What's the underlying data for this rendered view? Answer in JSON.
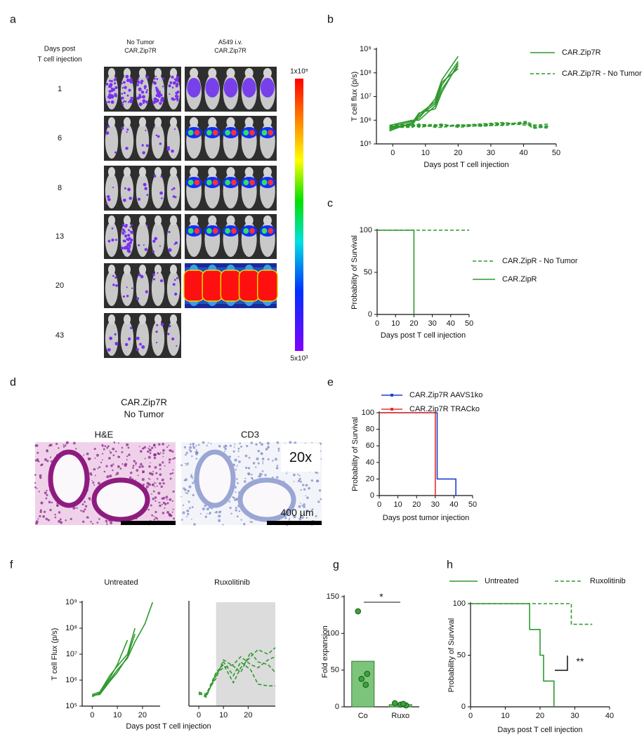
{
  "panel_labels": [
    "a",
    "b",
    "c",
    "d",
    "e",
    "f",
    "g",
    "h"
  ],
  "panel_a": {
    "row_header": [
      "Days post",
      "T cell injection"
    ],
    "column_headers": [
      [
        "No Tumor",
        "CAR.Zip7R"
      ],
      [
        "A549 i.v.",
        "CAR.Zip7R"
      ]
    ],
    "days": [
      "1",
      "6",
      "8",
      "13",
      "20",
      "43"
    ],
    "colorbar_labels": [
      "1x10⁵",
      "5x10³"
    ]
  },
  "panel_d": {
    "title": [
      "CAR.Zip7R",
      "No Tumor"
    ],
    "stains": [
      "H&E",
      "CD3"
    ],
    "magnification": "20x",
    "scale_bar": "400 µm"
  },
  "chart_data": [
    {
      "type": "line",
      "ylog": true,
      "xlim": [
        -5,
        50
      ],
      "xticks": [
        0,
        10,
        20,
        30,
        40,
        50
      ],
      "ylim": [
        100000,
        1000000000
      ],
      "yticks": [
        {
          "value": 100000,
          "label": "10⁵"
        },
        {
          "value": 1000000,
          "label": "10⁶"
        },
        {
          "value": 10000000,
          "label": "10⁷"
        },
        {
          "value": 100000000,
          "label": "10⁸"
        },
        {
          "value": 1000000000,
          "label": "10⁹"
        }
      ],
      "xlabel": "Days post T cell injection",
      "ylabel": "T cell flux (p/s)",
      "series": [
        {
          "name": "CAR.Zip7R",
          "color": "#2e9a2e",
          "dash": false,
          "lines": [
            {
              "x": [
                -1,
                1,
                6,
                8,
                13,
                15,
                20
              ],
              "values": [
                500000,
                600000,
                900000,
                1200000,
                8000000,
                50000000,
                500000000
              ]
            },
            {
              "x": [
                -1,
                1,
                6,
                8,
                13,
                15,
                20
              ],
              "values": [
                400000,
                500000,
                700000,
                1500000,
                5000000,
                30000000,
                300000000
              ]
            },
            {
              "x": [
                -1,
                1,
                6,
                8,
                13,
                15,
                20
              ],
              "values": [
                600000,
                700000,
                1000000,
                1000000,
                4000000,
                20000000,
                200000000
              ]
            },
            {
              "x": [
                -1,
                1,
                6,
                8,
                13,
                15,
                20
              ],
              "values": [
                350000,
                450000,
                800000,
                2000000,
                3000000,
                15000000,
                250000000
              ]
            },
            {
              "x": [
                -1,
                1,
                6,
                8,
                13,
                15,
                20
              ],
              "values": [
                450000,
                550000,
                600000,
                1800000,
                6000000,
                40000000,
                150000000
              ]
            }
          ]
        },
        {
          "name": "CAR.Zip7R - No Tumor",
          "color": "#2e9a2e",
          "dash": true,
          "lines": [
            {
              "x": [
                -1,
                1,
                6,
                8,
                13,
                15,
                20,
                27,
                34,
                41,
                43,
                48
              ],
              "values": [
                500000,
                600000,
                650000,
                550000,
                600000,
                650000,
                550000,
                600000,
                700000,
                800000,
                500000,
                600000
              ]
            },
            {
              "x": [
                -1,
                1,
                6,
                8,
                13,
                15,
                20,
                27,
                34,
                41,
                43,
                48
              ],
              "values": [
                450000,
                550000,
                600000,
                600000,
                550000,
                600000,
                600000,
                650000,
                750000,
                700000,
                450000,
                550000
              ]
            },
            {
              "x": [
                -1,
                1,
                6,
                8,
                13,
                15,
                20,
                27,
                34,
                41,
                43,
                48
              ],
              "values": [
                600000,
                500000,
                550000,
                650000,
                650000,
                550000,
                650000,
                550000,
                650000,
                900000,
                600000,
                700000
              ]
            },
            {
              "x": [
                -1,
                1,
                6,
                8,
                13,
                15,
                20,
                27,
                34,
                41,
                43,
                48
              ],
              "values": [
                550000,
                650000,
                700000,
                500000,
                600000,
                700000,
                500000,
                600000,
                600000,
                750000,
                550000,
                450000
              ]
            },
            {
              "x": [
                -1,
                1,
                6,
                8,
                13,
                15,
                20,
                27,
                34,
                41,
                43,
                48
              ],
              "values": [
                400000,
                500000,
                500000,
                700000,
                500000,
                500000,
                600000,
                700000,
                800000,
                600000,
                650000,
                500000
              ]
            }
          ]
        }
      ]
    },
    {
      "type": "line",
      "xlim": [
        0,
        50
      ],
      "xticks": [
        0,
        10,
        20,
        30,
        40,
        50
      ],
      "ylim": [
        0,
        100
      ],
      "yticks": [
        0,
        50,
        100
      ],
      "xlabel": "Days post T cell injection",
      "ylabel": "Probability of Survival",
      "series": [
        {
          "name": "CAR.ZipR - No Tumor",
          "color": "#2e9a2e",
          "dash": true,
          "lines": [
            {
              "x": [
                0,
                50
              ],
              "values": [
                100,
                100
              ]
            }
          ]
        },
        {
          "name": "CAR.ZipR",
          "color": "#2e9a2e",
          "dash": false,
          "lines": [
            {
              "x": [
                0,
                20,
                20
              ],
              "values": [
                100,
                100,
                0
              ]
            }
          ]
        }
      ]
    },
    {
      "type": "line",
      "xlim": [
        0,
        50
      ],
      "xticks": [
        0,
        10,
        20,
        30,
        40,
        50
      ],
      "ylim": [
        0,
        100
      ],
      "yticks": [
        0,
        20,
        40,
        60,
        80,
        100
      ],
      "xlabel": "Days post tumor injection",
      "ylabel": "Probability of Survival",
      "series": [
        {
          "name": "CAR.Zip7R AAVS1ko",
          "color": "#1f3fd6",
          "dash": false,
          "lines": [
            {
              "x": [
                0,
                31,
                31,
                41,
                41
              ],
              "values": [
                100,
                100,
                20,
                20,
                0
              ]
            }
          ]
        },
        {
          "name": "CAR.Zip7R TRACko",
          "color": "#e8302a",
          "dash": false,
          "lines": [
            {
              "x": [
                0,
                30,
                30
              ],
              "values": [
                100,
                100,
                0
              ]
            }
          ]
        }
      ]
    },
    {
      "type": "line",
      "ylog": true,
      "title": "Untreated",
      "xlim": [
        -4,
        27
      ],
      "xticks": [
        0,
        10,
        20
      ],
      "ylim": [
        100000,
        1000000000
      ],
      "yticks": [
        {
          "value": 100000,
          "label": "10⁵"
        },
        {
          "value": 1000000,
          "label": "10⁶"
        },
        {
          "value": 10000000,
          "label": "10⁷"
        },
        {
          "value": 100000000,
          "label": "10⁸"
        },
        {
          "value": 1000000000,
          "label": "10⁹"
        }
      ],
      "xlabel": "Days post T cell injection",
      "ylabel": "T cell Flux (p/s)",
      "series": [
        {
          "color": "#2e9a2e",
          "dash": false,
          "lines": [
            {
              "x": [
                0,
                3,
                7,
                10,
                14,
                17,
                21,
                24
              ],
              "values": [
                250000,
                300000,
                1000000,
                2500000,
                7000000,
                30000000,
                150000000,
                1000000000
              ]
            },
            {
              "x": [
                0,
                3,
                7,
                10,
                14,
                17
              ],
              "values": [
                280000,
                350000,
                1500000,
                3500000,
                10000000,
                100000000
              ]
            },
            {
              "x": [
                0,
                3,
                7,
                10,
                14
              ],
              "values": [
                230000,
                320000,
                1200000,
                4000000,
                35000000
              ]
            },
            {
              "x": [
                0,
                3,
                7,
                10,
                14,
                17
              ],
              "values": [
                260000,
                280000,
                900000,
                2000000,
                8000000,
                60000000
              ]
            }
          ]
        }
      ]
    },
    {
      "type": "line",
      "ylog": true,
      "title": "Ruxolitinib",
      "xlim": [
        -4,
        31
      ],
      "xticks": [
        0,
        10,
        20
      ],
      "ylim": [
        100000,
        1000000000
      ],
      "shaded_region": [
        7,
        31
      ],
      "series": [
        {
          "color": "#2e9a2e",
          "dash": true,
          "lines": [
            {
              "x": [
                0,
                3,
                7,
                10,
                14,
                17,
                21,
                24,
                28,
                31
              ],
              "values": [
                300000,
                250000,
                1500000,
                5000000,
                1500000,
                5000000,
                2500000,
                700000,
                600000,
                600000
              ]
            },
            {
              "x": [
                0,
                3,
                7,
                10,
                14,
                17,
                21,
                24,
                28,
                31
              ],
              "values": [
                350000,
                280000,
                2000000,
                4000000,
                800000,
                3000000,
                8000000,
                15000000,
                10000000,
                18000000
              ]
            },
            {
              "x": [
                0,
                3,
                7,
                10,
                14,
                17,
                21,
                24,
                28,
                31
              ],
              "values": [
                280000,
                300000,
                1200000,
                6000000,
                3500000,
                2000000,
                12000000,
                5000000,
                4000000,
                2000000
              ]
            },
            {
              "x": [
                0,
                3,
                7,
                10,
                14,
                17,
                21,
                24,
                28,
                31
              ],
              "values": [
                320000,
                220000,
                1800000,
                3000000,
                4000000,
                8000000,
                4000000,
                3000000,
                6000000,
                8000000
              ]
            }
          ]
        }
      ]
    },
    {
      "type": "bar",
      "categories": [
        "Co",
        "Ruxo"
      ],
      "values": [
        62,
        3
      ],
      "points": [
        [
          130,
          45,
          38,
          30
        ],
        [
          5,
          3,
          2,
          4
        ]
      ],
      "color": "#7cc47c",
      "point_color": "#3aa33a",
      "ylim": [
        0,
        150
      ],
      "yticks": [
        0,
        50,
        100,
        150
      ],
      "ylabel": "Fold expansion",
      "annotation": "*"
    },
    {
      "type": "line",
      "xlim": [
        0,
        40
      ],
      "xticks": [
        0,
        10,
        20,
        30,
        40
      ],
      "ylim": [
        0,
        100
      ],
      "yticks": [
        0,
        50,
        100
      ],
      "xlabel": "Days post T cell injection",
      "ylabel": "Probability of Survival",
      "annotation": "**",
      "series": [
        {
          "name": "Untreated",
          "color": "#2e9a2e",
          "dash": false,
          "lines": [
            {
              "x": [
                0,
                17,
                17,
                20,
                20,
                21,
                21,
                24,
                24
              ],
              "values": [
                100,
                100,
                75,
                75,
                50,
                50,
                25,
                25,
                0
              ]
            }
          ]
        },
        {
          "name": "Ruxolitinib",
          "color": "#2e9a2e",
          "dash": true,
          "lines": [
            {
              "x": [
                0,
                29,
                29,
                35
              ],
              "values": [
                100,
                100,
                80,
                80
              ]
            }
          ]
        }
      ]
    }
  ]
}
